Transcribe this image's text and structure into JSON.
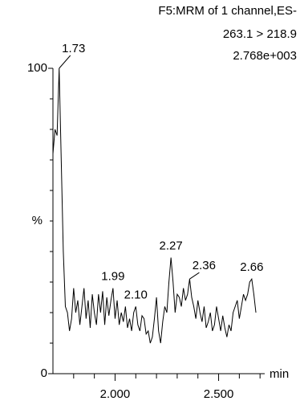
{
  "chart_data": {
    "type": "line",
    "title_lines": [
      "F5:MRM of 1 channel,ES-",
      "263.1 > 218.9",
      "2.768e+003"
    ],
    "ylabel": "%",
    "xlabel": "min",
    "color": "#000000",
    "xlim": [
      1.7,
      2.8
    ],
    "ylim": [
      0,
      100
    ],
    "xticks": [
      {
        "value": 2.0,
        "label": "2.000"
      },
      {
        "value": 2.5,
        "label": "2.500"
      }
    ],
    "x_minor_ticks": [
      1.8,
      1.9,
      2.1,
      2.2,
      2.3,
      2.4,
      2.6,
      2.7
    ],
    "yticks": [
      0,
      100
    ],
    "y_minor_ticks": [
      10,
      20,
      30,
      40,
      50,
      60,
      70,
      80,
      90
    ],
    "x": [
      1.7,
      1.71,
      1.72,
      1.73,
      1.74,
      1.75,
      1.76,
      1.77,
      1.78,
      1.79,
      1.8,
      1.81,
      1.82,
      1.83,
      1.84,
      1.85,
      1.86,
      1.87,
      1.88,
      1.89,
      1.9,
      1.91,
      1.92,
      1.93,
      1.94,
      1.95,
      1.96,
      1.97,
      1.98,
      1.99,
      2.0,
      2.01,
      2.02,
      2.03,
      2.04,
      2.05,
      2.06,
      2.07,
      2.08,
      2.09,
      2.1,
      2.11,
      2.12,
      2.13,
      2.14,
      2.15,
      2.16,
      2.17,
      2.18,
      2.19,
      2.2,
      2.21,
      2.22,
      2.23,
      2.24,
      2.25,
      2.26,
      2.27,
      2.28,
      2.29,
      2.3,
      2.31,
      2.32,
      2.33,
      2.34,
      2.35,
      2.36,
      2.37,
      2.38,
      2.39,
      2.4,
      2.41,
      2.42,
      2.43,
      2.44,
      2.45,
      2.46,
      2.47,
      2.48,
      2.49,
      2.5,
      2.51,
      2.52,
      2.53,
      2.54,
      2.55,
      2.56,
      2.57,
      2.58,
      2.59,
      2.6,
      2.61,
      2.62,
      2.63,
      2.64,
      2.65,
      2.66,
      2.67,
      2.68
    ],
    "values": [
      72,
      80,
      78,
      100,
      70,
      40,
      22,
      20,
      14,
      18,
      28,
      20,
      24,
      16,
      22,
      28,
      18,
      24,
      15,
      26,
      20,
      16,
      26,
      20,
      27,
      16,
      25,
      19,
      24,
      28,
      18,
      24,
      16,
      20,
      17,
      22,
      15,
      18,
      14,
      20,
      22,
      16,
      14,
      19,
      18,
      13,
      14,
      10,
      12,
      18,
      25,
      14,
      10,
      17,
      22,
      20,
      30,
      38,
      30,
      20,
      26,
      25,
      22,
      28,
      24,
      26,
      31,
      25,
      22,
      18,
      24,
      20,
      17,
      22,
      15,
      17,
      20,
      14,
      16,
      22,
      18,
      14,
      19,
      15,
      12,
      16,
      14,
      20,
      22,
      24,
      18,
      22,
      26,
      24,
      26,
      30,
      31,
      26,
      20
    ],
    "annotations": [
      {
        "text": "1.73",
        "x": 1.73,
        "y": 100
      },
      {
        "text": "1.99",
        "x": 1.99,
        "y": 28
      },
      {
        "text": "2.10",
        "x": 2.1,
        "y": 22
      },
      {
        "text": "2.27",
        "x": 2.27,
        "y": 38
      },
      {
        "text": "2.36",
        "x": 2.36,
        "y": 31
      },
      {
        "text": "2.66",
        "x": 2.66,
        "y": 31
      }
    ]
  }
}
